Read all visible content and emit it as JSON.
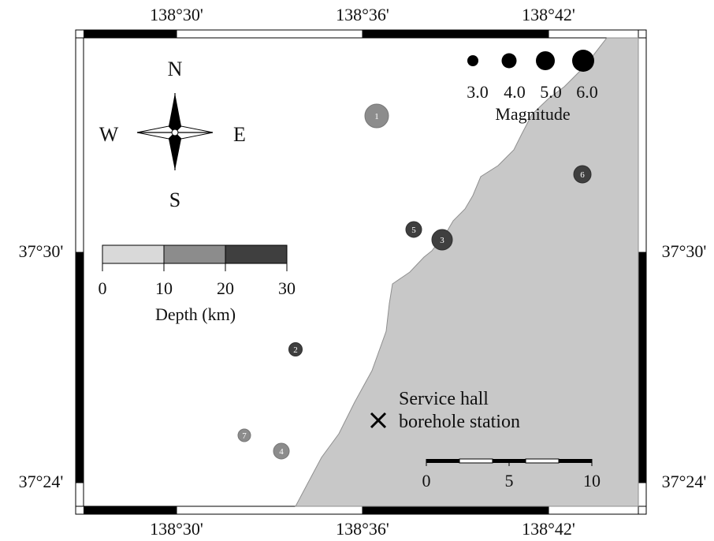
{
  "map": {
    "top_lon_ticks": [
      "138°30'",
      "138°36'",
      "138°42'"
    ],
    "bottom_lon_ticks": [
      "138°30'",
      "138°36'",
      "138°42'"
    ],
    "left_lat_ticks": [
      "37°30'",
      "37°24'"
    ],
    "right_lat_ticks": [
      "37°30'",
      "37°24'"
    ],
    "compass": {
      "north": "N",
      "south": "S",
      "east": "E",
      "west": "W"
    },
    "magnitude_legend": {
      "title": "Magnitude",
      "values": [
        "3.0",
        "4.0",
        "5.0",
        "6.0"
      ]
    },
    "depth_legend": {
      "title": "Depth (km)",
      "ticks": [
        "0",
        "10",
        "20",
        "30"
      ],
      "colors": [
        "#d9d9d9",
        "#8c8c8c",
        "#3f3f3f"
      ]
    },
    "scale_bar": {
      "ticks": [
        "0",
        "5",
        "10"
      ]
    },
    "station": {
      "line1": "Service hall",
      "line2": "borehole station"
    },
    "events": [
      {
        "id": "1",
        "magnitude": 5.0,
        "depth_km": 10
      },
      {
        "id": "2",
        "magnitude": 3.7,
        "depth_km": 25
      },
      {
        "id": "3",
        "magnitude": 5.0,
        "depth_km": 25
      },
      {
        "id": "4",
        "magnitude": 4.0,
        "depth_km": 10
      },
      {
        "id": "5",
        "magnitude": 4.0,
        "depth_km": 25
      },
      {
        "id": "6",
        "magnitude": 4.3,
        "depth_km": 25
      },
      {
        "id": "7",
        "magnitude": 3.3,
        "depth_km": 10
      }
    ],
    "colors": {
      "land": "#c8c8c8",
      "frame": "#000000",
      "sea": "#ffffff"
    }
  }
}
